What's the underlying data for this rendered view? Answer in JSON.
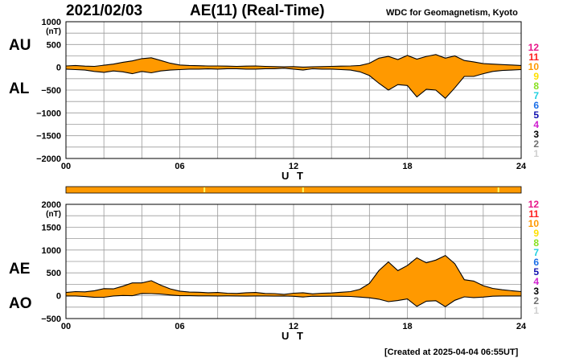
{
  "header": {
    "date": "2021/02/03",
    "title": "AE(11) (Real-Time)",
    "source": "WDC for Geomagnetism, Kyoto",
    "created": "[Created at 2025-04-04 06:55UT]"
  },
  "colors": {
    "fill": "#ff9900",
    "line": "#000000",
    "grid": "#9a9a9a",
    "station_bar": "#ff9900",
    "station_bar_tick": "#ffff66"
  },
  "station_legend": [
    {
      "label": "12",
      "color": "#e8178a"
    },
    {
      "label": "11",
      "color": "#ff2020"
    },
    {
      "label": "10",
      "color": "#ff9900"
    },
    {
      "label": "9",
      "color": "#ffe000"
    },
    {
      "label": "8",
      "color": "#88e020"
    },
    {
      "label": "7",
      "color": "#20d0e0"
    },
    {
      "label": "6",
      "color": "#1a6ee8"
    },
    {
      "label": "5",
      "color": "#1010b0"
    },
    {
      "label": "4",
      "color": "#d020d0"
    },
    {
      "label": "3",
      "color": "#000000"
    },
    {
      "label": "2",
      "color": "#707070"
    },
    {
      "label": "1",
      "color": "#d0d0d0"
    }
  ],
  "station_bar": {
    "stations": 11,
    "drops_at_ut": [
      7.3,
      12.5,
      22.8
    ]
  },
  "chart_data": [
    {
      "type": "area",
      "name": "AU/AL",
      "upper_label": "AU",
      "lower_label": "AL",
      "ylabel": "(nT)",
      "xlabel": "U T",
      "xlim": [
        0,
        24
      ],
      "ylim": [
        -2000,
        1000
      ],
      "xticks": [
        0,
        6,
        12,
        18,
        24
      ],
      "xtick_labels": [
        "00",
        "06",
        "12",
        "18",
        "24"
      ],
      "yticks": [
        1000,
        500,
        0,
        -500,
        -1000,
        -1500,
        -2000
      ],
      "ytick_labels": [
        "1000",
        "500",
        "0",
        "−500",
        "−1000",
        "−1500",
        "−2000"
      ],
      "grid": true,
      "x": [
        0,
        0.5,
        1,
        1.5,
        2,
        2.5,
        3,
        3.5,
        4,
        4.5,
        5,
        5.5,
        6,
        6.5,
        7,
        7.5,
        8,
        8.5,
        9,
        9.5,
        10,
        10.5,
        11,
        11.5,
        12,
        12.5,
        13,
        13.5,
        14,
        14.5,
        15,
        15.5,
        16,
        16.5,
        17,
        17.5,
        18,
        18.5,
        19,
        19.5,
        20,
        20.5,
        21,
        21.5,
        22,
        22.5,
        23,
        23.5,
        24
      ],
      "series": [
        {
          "name": "AU",
          "values": [
            30,
            40,
            25,
            20,
            45,
            70,
            110,
            140,
            190,
            210,
            150,
            90,
            50,
            40,
            35,
            30,
            30,
            25,
            20,
            25,
            30,
            20,
            15,
            10,
            15,
            5,
            10,
            15,
            20,
            25,
            30,
            40,
            90,
            200,
            240,
            170,
            260,
            180,
            240,
            280,
            200,
            250,
            150,
            120,
            80,
            70,
            60,
            50,
            40
          ]
        },
        {
          "name": "AL",
          "values": [
            -40,
            -50,
            -60,
            -90,
            -110,
            -80,
            -100,
            -140,
            -90,
            -120,
            -80,
            -60,
            -50,
            -40,
            -40,
            -35,
            -40,
            -30,
            -30,
            -40,
            -40,
            -30,
            -30,
            -20,
            -40,
            -60,
            -30,
            -40,
            -40,
            -50,
            -60,
            -100,
            -180,
            -350,
            -500,
            -380,
            -400,
            -650,
            -480,
            -500,
            -680,
            -450,
            -200,
            -200,
            -140,
            -90,
            -70,
            -60,
            -50
          ]
        }
      ]
    },
    {
      "type": "area",
      "name": "AE/AO",
      "upper_label": "AE",
      "lower_label": "AO",
      "ylabel": "(nT)",
      "xlabel": "U T",
      "xlim": [
        0,
        24
      ],
      "ylim": [
        -500,
        2000
      ],
      "xticks": [
        0,
        6,
        12,
        18,
        24
      ],
      "xtick_labels": [
        "00",
        "06",
        "12",
        "18",
        "24"
      ],
      "yticks": [
        2000,
        1500,
        1000,
        500,
        0,
        -500
      ],
      "ytick_labels": [
        "2000",
        "1500",
        "1000",
        "500",
        "0",
        "−500"
      ],
      "grid": true,
      "x": [
        0,
        0.5,
        1,
        1.5,
        2,
        2.5,
        3,
        3.5,
        4,
        4.5,
        5,
        5.5,
        6,
        6.5,
        7,
        7.5,
        8,
        8.5,
        9,
        9.5,
        10,
        10.5,
        11,
        11.5,
        12,
        12.5,
        13,
        13.5,
        14,
        14.5,
        15,
        15.5,
        16,
        16.5,
        17,
        17.5,
        18,
        18.5,
        19,
        19.5,
        20,
        20.5,
        21,
        21.5,
        22,
        22.5,
        23,
        23.5,
        24
      ],
      "series": [
        {
          "name": "AE",
          "values": [
            70,
            90,
            85,
            110,
            155,
            150,
            210,
            280,
            280,
            330,
            230,
            150,
            100,
            80,
            75,
            65,
            70,
            55,
            50,
            65,
            70,
            50,
            45,
            30,
            55,
            65,
            40,
            55,
            60,
            75,
            90,
            140,
            270,
            550,
            740,
            550,
            660,
            830,
            720,
            780,
            880,
            700,
            350,
            320,
            220,
            160,
            130,
            110,
            90
          ]
        },
        {
          "name": "AO",
          "values": [
            -5,
            -5,
            -18,
            -35,
            -33,
            -5,
            5,
            0,
            50,
            45,
            35,
            15,
            0,
            0,
            -3,
            -3,
            -5,
            -3,
            -5,
            -8,
            -5,
            -5,
            -8,
            -5,
            -13,
            -28,
            -10,
            -13,
            -10,
            -13,
            -15,
            -30,
            -45,
            -75,
            -130,
            -105,
            -70,
            -235,
            -120,
            -110,
            -240,
            -100,
            -25,
            -40,
            -30,
            -10,
            -5,
            -5,
            -5
          ]
        }
      ]
    }
  ]
}
